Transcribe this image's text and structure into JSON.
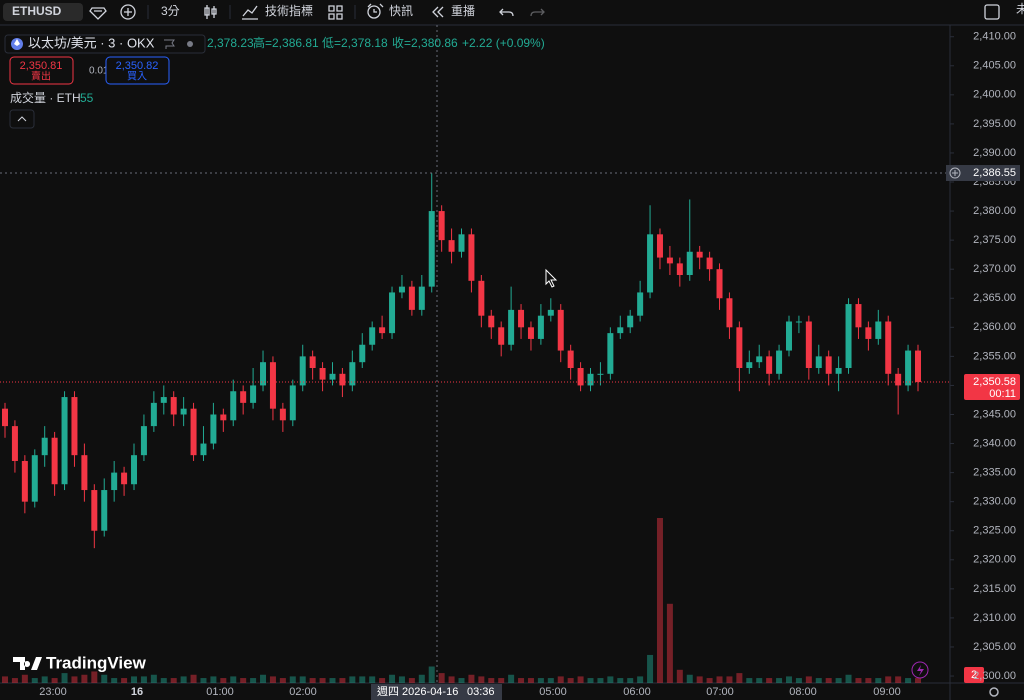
{
  "toolbar": {
    "symbol": "ETHUSD",
    "interval": "3分",
    "indicators": "技術指標",
    "alerts": "快訊",
    "replay": "重播",
    "clipped": "未"
  },
  "legend": {
    "symbol": "以太坊/美元 · 3 · OKX",
    "open": "2,378.23",
    "high": "高=2,386.81",
    "low": "低=2,378.18",
    "close": "收=2,380.86",
    "change": "+2.22 (+0.09%)",
    "volume_title": "成交量 · ETH",
    "volume_value": "55"
  },
  "trade": {
    "sell_price": "2,350.81",
    "sell_label": "賣出",
    "spread": "0.01",
    "buy_price": "2,350.82",
    "buy_label": "買入"
  },
  "branding": "TradingView",
  "badge": "2",
  "chart_data": {
    "type": "candlestick",
    "up_color": "#22ab94",
    "down_color": "#f23645",
    "ylim": [
      2298.8,
      2411.5
    ],
    "yticks": [
      {
        "value": 2300,
        "label": "2,300.00"
      },
      {
        "value": 2305,
        "label": "2,305.00"
      },
      {
        "value": 2310,
        "label": "2,310.00"
      },
      {
        "value": 2315,
        "label": "2,315.00"
      },
      {
        "value": 2320,
        "label": "2,320.00"
      },
      {
        "value": 2325,
        "label": "2,325.00"
      },
      {
        "value": 2330,
        "label": "2,330.00"
      },
      {
        "value": 2335,
        "label": "2,335.00"
      },
      {
        "value": 2340,
        "label": "2,340.00"
      },
      {
        "value": 2345,
        "label": "2,345.00"
      },
      {
        "value": 2350,
        "label": "2,350.00"
      },
      {
        "value": 2355,
        "label": "2,355.00"
      },
      {
        "value": 2360,
        "label": "2,360.00"
      },
      {
        "value": 2365,
        "label": "2,365.00"
      },
      {
        "value": 2370,
        "label": "2,370.00"
      },
      {
        "value": 2375,
        "label": "2,375.00"
      },
      {
        "value": 2380,
        "label": "2,380.00"
      },
      {
        "value": 2385,
        "label": "2,385.00"
      },
      {
        "value": 2390,
        "label": "2,390.00"
      },
      {
        "value": 2395,
        "label": "2,395.00"
      },
      {
        "value": 2400,
        "label": "2,400.00"
      },
      {
        "value": 2405,
        "label": "2,405.00"
      },
      {
        "value": 2410,
        "label": "2,410.00"
      }
    ],
    "time_labels": [
      "23:00",
      "16",
      "01:00",
      "02:00",
      "05:00",
      "06:00",
      "07:00",
      "08:00",
      "09:00"
    ],
    "open": [
      2346,
      2343,
      2337,
      2330,
      2338,
      2341,
      2333,
      2348,
      2338,
      2332,
      2325,
      2332,
      2335,
      2333,
      2338,
      2343,
      2347,
      2348,
      2345,
      2346,
      2338,
      2340,
      2345,
      2344,
      2349,
      2347,
      2350,
      2354,
      2346,
      2344,
      2350,
      2355,
      2353,
      2351,
      2352,
      2350,
      2354,
      2357,
      2360,
      2359,
      2366,
      2367,
      2363,
      2367,
      2380,
      2375,
      2373,
      2376,
      2368,
      2362,
      2360,
      2357,
      2363,
      2360,
      2358,
      2362,
      2363,
      2356,
      2353,
      2350,
      2352,
      2352,
      2359,
      2360,
      2362,
      2366,
      2376,
      2372,
      2371,
      2369,
      2373,
      2372,
      2370,
      2365,
      2360,
      2353,
      2354,
      2355,
      2352,
      2356,
      2361,
      2361,
      2353,
      2355,
      2352,
      2353,
      2364,
      2360,
      2358,
      2361,
      2352,
      2350,
      2356
    ],
    "high": [
      2347,
      2344,
      2338,
      2339,
      2343,
      2342,
      2349,
      2349,
      2340,
      2333,
      2334,
      2337,
      2336,
      2340,
      2345,
      2349,
      2350,
      2349,
      2348,
      2347,
      2343,
      2347,
      2346,
      2351,
      2350,
      2353,
      2356,
      2355,
      2347,
      2351,
      2357,
      2356,
      2354,
      2354,
      2353,
      2356,
      2359,
      2361,
      2362,
      2367,
      2369,
      2368,
      2369,
      2386.5,
      2381,
      2377,
      2377,
      2377,
      2369,
      2363,
      2361,
      2367,
      2364,
      2361,
      2364,
      2365,
      2364,
      2357,
      2354,
      2353,
      2354,
      2360,
      2362,
      2363,
      2368,
      2381,
      2377,
      2374,
      2372,
      2382,
      2374,
      2373,
      2371,
      2366,
      2361,
      2356,
      2357,
      2356,
      2357,
      2362,
      2362,
      2362,
      2357,
      2356,
      2355,
      2365,
      2365,
      2361,
      2363,
      2362,
      2353,
      2357,
      2357
    ],
    "low": [
      2341,
      2335,
      2328,
      2329,
      2336,
      2331,
      2332,
      2336,
      2330,
      2322,
      2324,
      2330,
      2331,
      2332,
      2337,
      2342,
      2345,
      2343,
      2343,
      2337,
      2337,
      2339,
      2342,
      2343,
      2345,
      2346,
      2349,
      2344,
      2342,
      2343,
      2349,
      2351,
      2349,
      2350,
      2348,
      2349,
      2353,
      2356,
      2358,
      2358,
      2365,
      2362,
      2362,
      2366,
      2373,
      2371,
      2372,
      2366,
      2360,
      2358,
      2355,
      2356,
      2358,
      2356,
      2357,
      2361,
      2354,
      2351,
      2349,
      2349,
      2350,
      2351,
      2358,
      2359,
      2361,
      2365,
      2370,
      2369,
      2367,
      2368,
      2370,
      2368,
      2363,
      2358,
      2349,
      2352,
      2353,
      2350,
      2351,
      2355,
      2359,
      2351,
      2352,
      2350,
      2349,
      2352,
      2358,
      2356,
      2357,
      2350,
      2345,
      2349,
      2349
    ],
    "close": [
      2343,
      2337,
      2330,
      2338,
      2341,
      2333,
      2348,
      2338,
      2332,
      2325,
      2332,
      2335,
      2333,
      2338,
      2343,
      2347,
      2348,
      2345,
      2346,
      2338,
      2340,
      2345,
      2344,
      2349,
      2347,
      2350,
      2354,
      2346,
      2344,
      2350,
      2355,
      2353,
      2351,
      2352,
      2350,
      2354,
      2357,
      2360,
      2359,
      2366,
      2367,
      2363,
      2367,
      2380,
      2375,
      2373,
      2376,
      2368,
      2362,
      2360,
      2357,
      2363,
      2360,
      2358,
      2362,
      2363,
      2356,
      2353,
      2350,
      2352,
      2352,
      2359,
      2360,
      2362,
      2366,
      2376,
      2372,
      2371,
      2369,
      2373,
      2372,
      2370,
      2365,
      2360,
      2353,
      2354,
      2355,
      2352,
      2356,
      2361,
      2361,
      2353,
      2355,
      2352,
      2353,
      2364,
      2360,
      2358,
      2361,
      2352,
      2350,
      2356,
      2350.58
    ],
    "volume": [
      4,
      3,
      5,
      3,
      4,
      3,
      6,
      4,
      5,
      7,
      5,
      3,
      3,
      4,
      4,
      5,
      3,
      3,
      4,
      5,
      3,
      4,
      3,
      4,
      3,
      3,
      5,
      4,
      3,
      4,
      4,
      3,
      3,
      3,
      3,
      4,
      4,
      4,
      3,
      5,
      4,
      3,
      5,
      10,
      6,
      4,
      3,
      5,
      4,
      3,
      3,
      5,
      3,
      3,
      3,
      3,
      4,
      3,
      4,
      3,
      3,
      4,
      3,
      3,
      4,
      17,
      100,
      48,
      8,
      5,
      4,
      3,
      4,
      4,
      6,
      3,
      3,
      3,
      3,
      4,
      3,
      4,
      3,
      3,
      3,
      5,
      3,
      3,
      3,
      4,
      4,
      3,
      3
    ],
    "last_price_label": "2,350.58",
    "countdown": "00:11",
    "crosshair": {
      "price": 2386.55,
      "price_label": "2,386.55",
      "date_label": "週四 2026-04-16",
      "time_label": "03:36"
    }
  }
}
